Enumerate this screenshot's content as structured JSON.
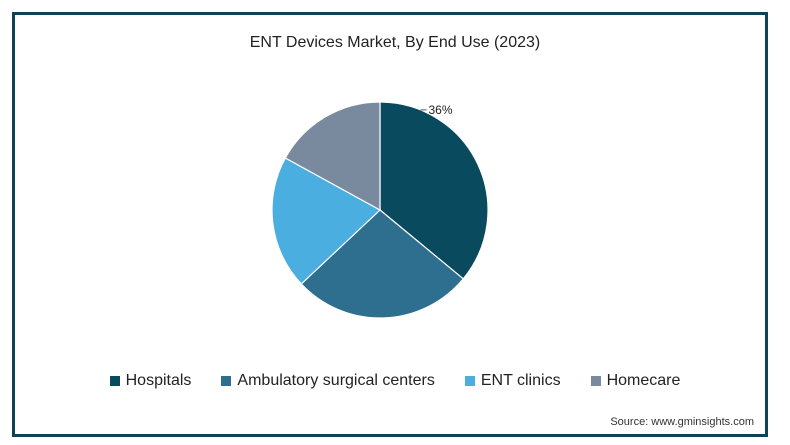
{
  "chart_data": {
    "type": "pie",
    "title": "ENT Devices Market, By End Use (2023)",
    "slices": [
      {
        "name": "Hospitals",
        "value": 36,
        "color": "#0a4a5e",
        "label": "36%"
      },
      {
        "name": "Ambulatory surgical centers",
        "value": 27,
        "color": "#2e6e8e"
      },
      {
        "name": "ENT clinics",
        "value": 20,
        "color": "#4aaee0"
      },
      {
        "name": "Homecare",
        "value": 17,
        "color": "#7a8a9e"
      }
    ],
    "legend_position": "bottom",
    "source": "Source: www.gminsights.com"
  }
}
